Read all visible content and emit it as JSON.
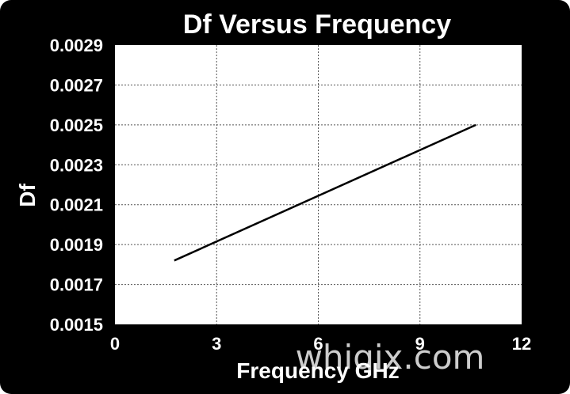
{
  "chart_data": {
    "type": "line",
    "title": "Df Versus Frequency",
    "xlabel": "Frequency GHz",
    "ylabel": "Df",
    "xlim": [
      0,
      12
    ],
    "ylim": [
      0.0015,
      0.0029
    ],
    "x_ticks": [
      "0",
      "3",
      "6",
      "9",
      "12"
    ],
    "y_ticks": [
      "0.0015",
      "0.0017",
      "0.0019",
      "0.0021",
      "0.0023",
      "0.0025",
      "0.0027",
      "0.0029"
    ],
    "grid": true,
    "series": [
      {
        "x": [
          1.75,
          10.65
        ],
        "y": [
          0.00182,
          0.0025
        ],
        "color": "#000000"
      }
    ]
  },
  "watermark": "whiqix.com",
  "colors": {
    "background": "#000000",
    "plot_area": "#ffffff",
    "grid": "#555555",
    "line": "#000000",
    "text": "#ffffff"
  }
}
